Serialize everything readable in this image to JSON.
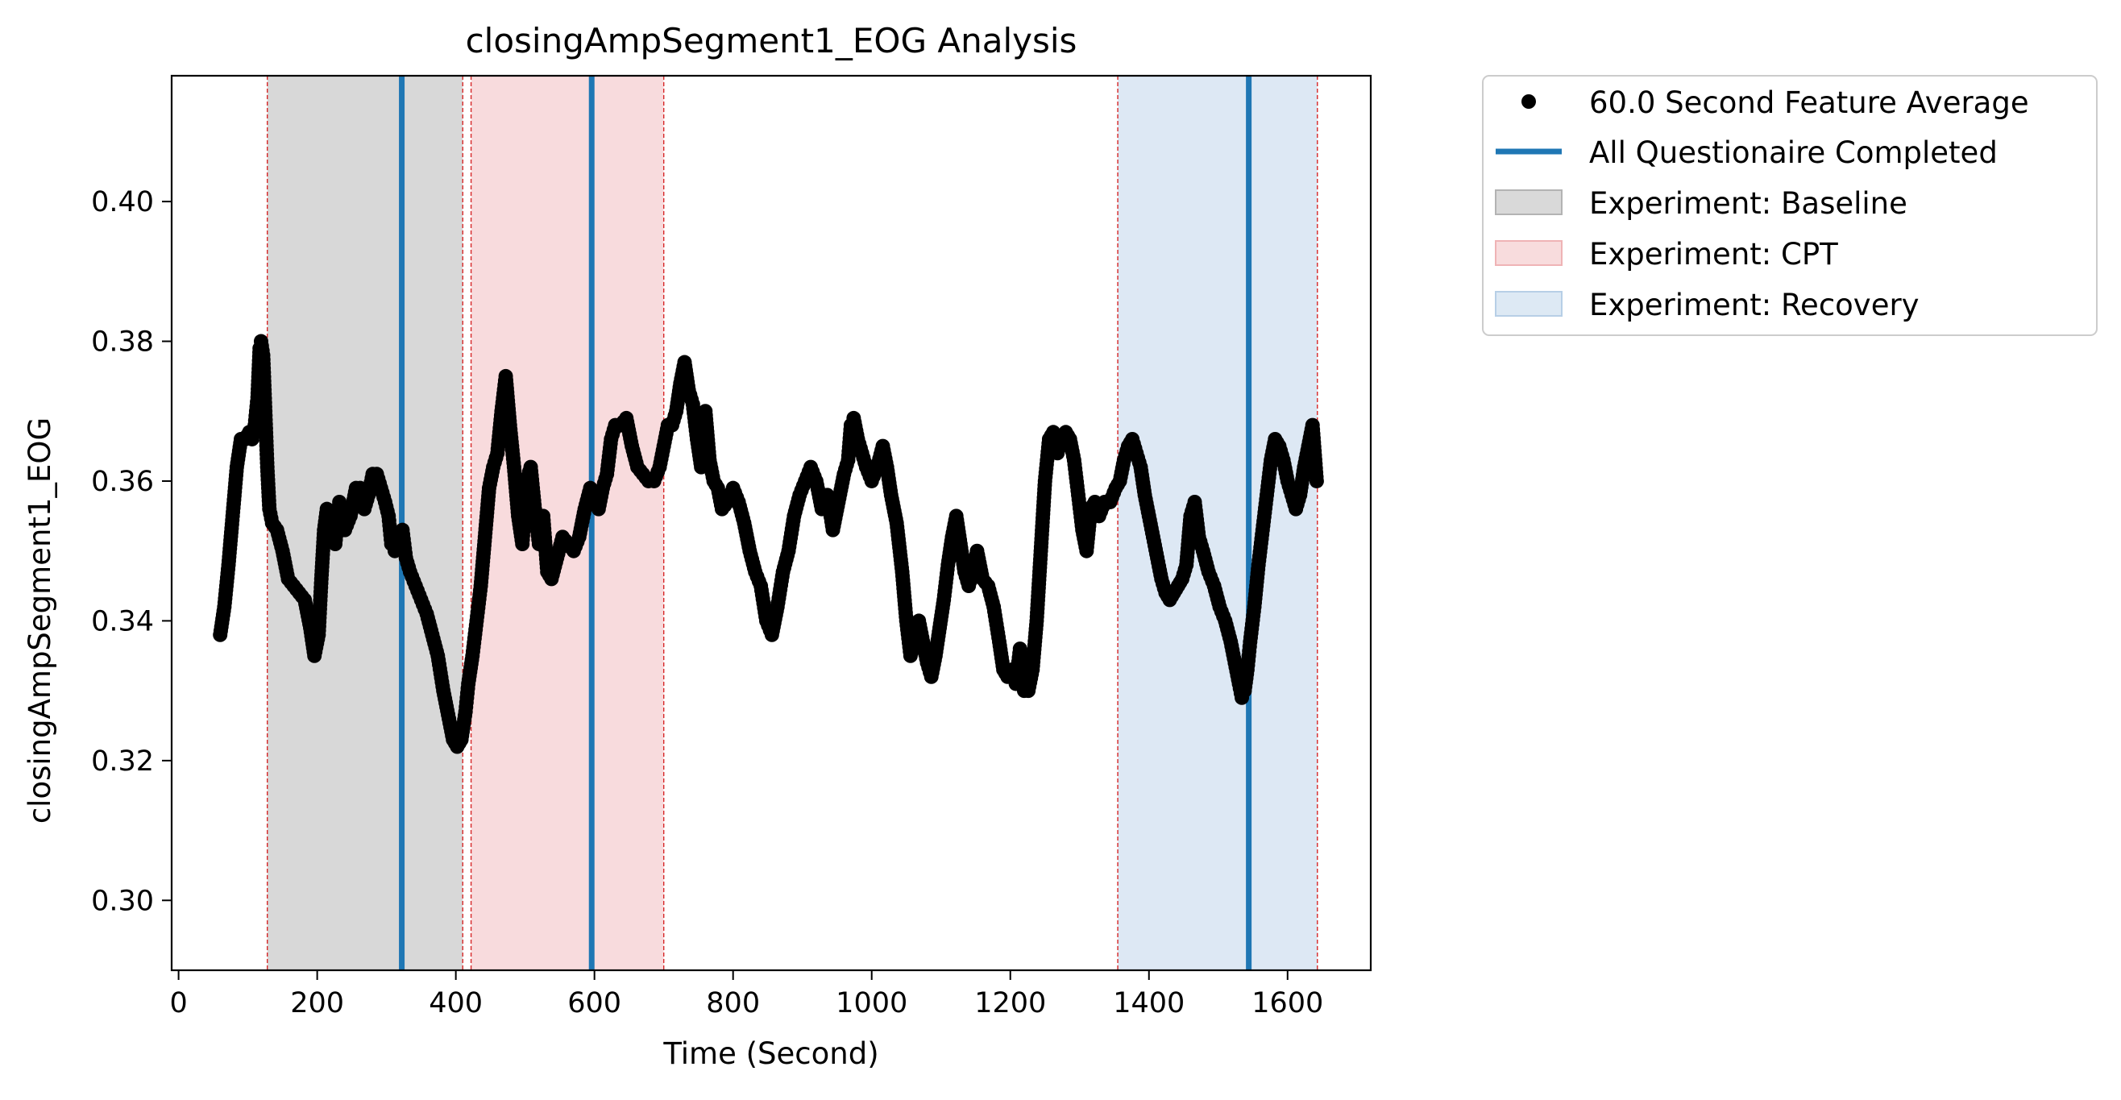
{
  "chart_data": {
    "type": "scatter",
    "title": "closingAmpSegment1_EOG Analysis",
    "xlabel": "Time (Second)",
    "ylabel": "closingAmpSegment1_EOG",
    "xlim": [
      -10,
      1720
    ],
    "ylim": [
      0.29,
      0.418
    ],
    "xticks": [
      0,
      200,
      400,
      600,
      800,
      1000,
      1200,
      1400,
      1600
    ],
    "xtick_labels": [
      "0",
      "200",
      "400",
      "600",
      "800",
      "1000",
      "1200",
      "1400",
      "1600"
    ],
    "yticks": [
      0.3,
      0.32,
      0.34,
      0.36,
      0.38,
      0.4
    ],
    "ytick_labels": [
      "0.30",
      "0.32",
      "0.34",
      "0.36",
      "0.38",
      "0.40"
    ],
    "grid": false,
    "legend_placement": "outside-top-right",
    "series": [
      {
        "name": "60.0 Second Feature Average",
        "kind": "scatter",
        "color": "#000000",
        "points": [
          [
            60,
            0.338
          ],
          [
            66,
            0.342
          ],
          [
            72,
            0.348
          ],
          [
            78,
            0.355
          ],
          [
            84,
            0.362
          ],
          [
            90,
            0.366
          ],
          [
            96,
            0.366
          ],
          [
            102,
            0.367
          ],
          [
            106,
            0.366
          ],
          [
            110,
            0.368
          ],
          [
            114,
            0.372
          ],
          [
            117,
            0.379
          ],
          [
            119,
            0.38
          ],
          [
            122,
            0.378
          ],
          [
            125,
            0.37
          ],
          [
            128,
            0.362
          ],
          [
            131,
            0.356
          ],
          [
            135,
            0.354
          ],
          [
            142,
            0.353
          ],
          [
            150,
            0.35
          ],
          [
            158,
            0.346
          ],
          [
            166,
            0.345
          ],
          [
            174,
            0.344
          ],
          [
            182,
            0.343
          ],
          [
            190,
            0.339
          ],
          [
            196,
            0.335
          ],
          [
            202,
            0.338
          ],
          [
            206,
            0.346
          ],
          [
            210,
            0.353
          ],
          [
            214,
            0.356
          ],
          [
            220,
            0.353
          ],
          [
            226,
            0.351
          ],
          [
            232,
            0.357
          ],
          [
            240,
            0.353
          ],
          [
            248,
            0.355
          ],
          [
            256,
            0.359
          ],
          [
            262,
            0.359
          ],
          [
            268,
            0.356
          ],
          [
            274,
            0.358
          ],
          [
            280,
            0.361
          ],
          [
            286,
            0.361
          ],
          [
            292,
            0.359
          ],
          [
            298,
            0.357
          ],
          [
            303,
            0.355
          ],
          [
            307,
            0.351
          ],
          [
            312,
            0.35
          ],
          [
            318,
            0.352
          ],
          [
            323,
            0.353
          ],
          [
            328,
            0.349
          ],
          [
            334,
            0.347
          ],
          [
            342,
            0.345
          ],
          [
            350,
            0.343
          ],
          [
            358,
            0.341
          ],
          [
            366,
            0.338
          ],
          [
            374,
            0.335
          ],
          [
            382,
            0.33
          ],
          [
            390,
            0.326
          ],
          [
            396,
            0.323
          ],
          [
            402,
            0.322
          ],
          [
            408,
            0.323
          ],
          [
            414,
            0.327
          ],
          [
            418,
            0.331
          ],
          [
            424,
            0.335
          ],
          [
            430,
            0.34
          ],
          [
            436,
            0.345
          ],
          [
            442,
            0.352
          ],
          [
            448,
            0.359
          ],
          [
            454,
            0.362
          ],
          [
            460,
            0.364
          ],
          [
            466,
            0.37
          ],
          [
            472,
            0.375
          ],
          [
            478,
            0.368
          ],
          [
            484,
            0.362
          ],
          [
            490,
            0.355
          ],
          [
            496,
            0.351
          ],
          [
            502,
            0.36
          ],
          [
            508,
            0.362
          ],
          [
            514,
            0.356
          ],
          [
            520,
            0.351
          ],
          [
            526,
            0.355
          ],
          [
            532,
            0.347
          ],
          [
            538,
            0.346
          ],
          [
            546,
            0.349
          ],
          [
            554,
            0.352
          ],
          [
            562,
            0.351
          ],
          [
            570,
            0.35
          ],
          [
            578,
            0.352
          ],
          [
            586,
            0.356
          ],
          [
            594,
            0.359
          ],
          [
            600,
            0.358
          ],
          [
            606,
            0.356
          ],
          [
            612,
            0.359
          ],
          [
            618,
            0.361
          ],
          [
            624,
            0.366
          ],
          [
            630,
            0.368
          ],
          [
            638,
            0.368
          ],
          [
            646,
            0.369
          ],
          [
            654,
            0.365
          ],
          [
            662,
            0.362
          ],
          [
            670,
            0.361
          ],
          [
            678,
            0.36
          ],
          [
            686,
            0.36
          ],
          [
            694,
            0.362
          ],
          [
            700,
            0.365
          ],
          [
            706,
            0.368
          ],
          [
            712,
            0.368
          ],
          [
            718,
            0.37
          ],
          [
            724,
            0.374
          ],
          [
            730,
            0.377
          ],
          [
            736,
            0.373
          ],
          [
            742,
            0.371
          ],
          [
            748,
            0.366
          ],
          [
            754,
            0.362
          ],
          [
            760,
            0.37
          ],
          [
            766,
            0.363
          ],
          [
            772,
            0.36
          ],
          [
            778,
            0.359
          ],
          [
            784,
            0.356
          ],
          [
            792,
            0.357
          ],
          [
            800,
            0.359
          ],
          [
            808,
            0.357
          ],
          [
            816,
            0.354
          ],
          [
            824,
            0.35
          ],
          [
            832,
            0.347
          ],
          [
            840,
            0.345
          ],
          [
            848,
            0.34
          ],
          [
            856,
            0.338
          ],
          [
            864,
            0.342
          ],
          [
            872,
            0.347
          ],
          [
            880,
            0.35
          ],
          [
            888,
            0.355
          ],
          [
            896,
            0.358
          ],
          [
            904,
            0.36
          ],
          [
            912,
            0.362
          ],
          [
            920,
            0.36
          ],
          [
            928,
            0.356
          ],
          [
            936,
            0.358
          ],
          [
            944,
            0.353
          ],
          [
            952,
            0.357
          ],
          [
            960,
            0.361
          ],
          [
            966,
            0.363
          ],
          [
            970,
            0.368
          ],
          [
            974,
            0.369
          ],
          [
            980,
            0.366
          ],
          [
            986,
            0.364
          ],
          [
            992,
            0.362
          ],
          [
            1000,
            0.36
          ],
          [
            1008,
            0.362
          ],
          [
            1016,
            0.365
          ],
          [
            1022,
            0.362
          ],
          [
            1028,
            0.358
          ],
          [
            1036,
            0.354
          ],
          [
            1044,
            0.347
          ],
          [
            1050,
            0.34
          ],
          [
            1056,
            0.335
          ],
          [
            1062,
            0.337
          ],
          [
            1068,
            0.34
          ],
          [
            1074,
            0.337
          ],
          [
            1080,
            0.334
          ],
          [
            1086,
            0.332
          ],
          [
            1092,
            0.335
          ],
          [
            1098,
            0.339
          ],
          [
            1104,
            0.343
          ],
          [
            1110,
            0.348
          ],
          [
            1116,
            0.352
          ],
          [
            1122,
            0.355
          ],
          [
            1128,
            0.351
          ],
          [
            1134,
            0.347
          ],
          [
            1140,
            0.345
          ],
          [
            1146,
            0.347
          ],
          [
            1152,
            0.35
          ],
          [
            1160,
            0.346
          ],
          [
            1168,
            0.345
          ],
          [
            1176,
            0.342
          ],
          [
            1184,
            0.337
          ],
          [
            1190,
            0.333
          ],
          [
            1196,
            0.332
          ],
          [
            1202,
            0.333
          ],
          [
            1208,
            0.331
          ],
          [
            1214,
            0.336
          ],
          [
            1220,
            0.33
          ],
          [
            1226,
            0.33
          ],
          [
            1232,
            0.333
          ],
          [
            1238,
            0.34
          ],
          [
            1244,
            0.35
          ],
          [
            1250,
            0.36
          ],
          [
            1256,
            0.366
          ],
          [
            1262,
            0.367
          ],
          [
            1268,
            0.364
          ],
          [
            1274,
            0.366
          ],
          [
            1280,
            0.367
          ],
          [
            1286,
            0.366
          ],
          [
            1292,
            0.363
          ],
          [
            1298,
            0.358
          ],
          [
            1304,
            0.353
          ],
          [
            1310,
            0.35
          ],
          [
            1316,
            0.356
          ],
          [
            1322,
            0.357
          ],
          [
            1328,
            0.355
          ],
          [
            1336,
            0.357
          ],
          [
            1344,
            0.357
          ],
          [
            1352,
            0.359
          ],
          [
            1358,
            0.36
          ],
          [
            1364,
            0.363
          ],
          [
            1370,
            0.365
          ],
          [
            1376,
            0.366
          ],
          [
            1382,
            0.364
          ],
          [
            1388,
            0.362
          ],
          [
            1394,
            0.358
          ],
          [
            1400,
            0.355
          ],
          [
            1406,
            0.352
          ],
          [
            1412,
            0.349
          ],
          [
            1418,
            0.346
          ],
          [
            1424,
            0.344
          ],
          [
            1430,
            0.343
          ],
          [
            1436,
            0.344
          ],
          [
            1442,
            0.345
          ],
          [
            1448,
            0.346
          ],
          [
            1454,
            0.348
          ],
          [
            1460,
            0.355
          ],
          [
            1466,
            0.357
          ],
          [
            1472,
            0.352
          ],
          [
            1478,
            0.35
          ],
          [
            1486,
            0.347
          ],
          [
            1494,
            0.345
          ],
          [
            1502,
            0.342
          ],
          [
            1510,
            0.34
          ],
          [
            1518,
            0.337
          ],
          [
            1524,
            0.334
          ],
          [
            1530,
            0.331
          ],
          [
            1534,
            0.329
          ],
          [
            1538,
            0.33
          ],
          [
            1542,
            0.333
          ],
          [
            1546,
            0.337
          ],
          [
            1552,
            0.342
          ],
          [
            1558,
            0.348
          ],
          [
            1564,
            0.353
          ],
          [
            1570,
            0.358
          ],
          [
            1576,
            0.363
          ],
          [
            1582,
            0.366
          ],
          [
            1588,
            0.365
          ],
          [
            1594,
            0.363
          ],
          [
            1600,
            0.36
          ],
          [
            1606,
            0.358
          ],
          [
            1612,
            0.356
          ],
          [
            1618,
            0.358
          ],
          [
            1624,
            0.362
          ],
          [
            1630,
            0.365
          ],
          [
            1636,
            0.368
          ],
          [
            1642,
            0.36
          ]
        ]
      },
      {
        "name": "All Questionaire Completed",
        "kind": "vline",
        "color": "#1f77b4",
        "x": [
          322,
          596,
          1544
        ]
      }
    ],
    "spans": [
      {
        "name": "Experiment: Baseline",
        "start": 128,
        "end": 410,
        "color": "#7f7f7f",
        "alpha": 0.3
      },
      {
        "name": "Experiment: CPT",
        "start": 422,
        "end": 700,
        "color": "#e8898e",
        "alpha": 0.3
      },
      {
        "name": "Experiment: Recovery",
        "start": 1355,
        "end": 1643,
        "color": "#8fb3d9",
        "alpha": 0.3
      }
    ],
    "boundary_lines": {
      "x": [
        128,
        410,
        422,
        700,
        1355,
        1643
      ],
      "color": "#d62728"
    },
    "legend": [
      {
        "label": "60.0 Second Feature Average",
        "kind": "marker",
        "color": "#000000"
      },
      {
        "label": "All Questionaire Completed",
        "kind": "line",
        "color": "#1f77b4"
      },
      {
        "label": "Experiment: Baseline",
        "kind": "patch",
        "color": "#d9d9d9",
        "edge": "#b3b3b3"
      },
      {
        "label": "Experiment: CPT",
        "kind": "patch",
        "color": "#f8dcdd",
        "edge": "#efb3b5"
      },
      {
        "label": "Experiment: Recovery",
        "kind": "patch",
        "color": "#dde9f4",
        "edge": "#b7cfe6"
      }
    ]
  }
}
